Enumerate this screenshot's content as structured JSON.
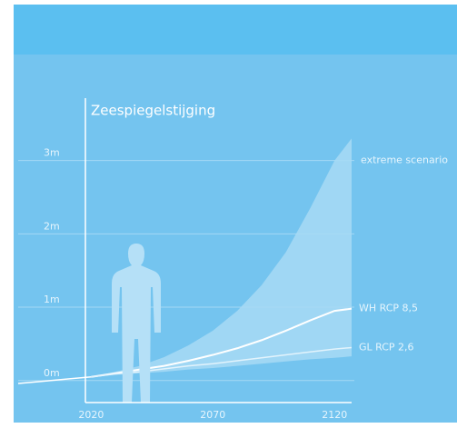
{
  "chart_data": {
    "type": "line",
    "title": "Zeespiegelstijging",
    "x": [
      1990,
      2000,
      2010,
      2020,
      2030,
      2040,
      2050,
      2060,
      2070,
      2080,
      2090,
      2100,
      2110,
      2120,
      2127
    ],
    "xlim": [
      1990,
      2127
    ],
    "xticks": [
      2020,
      2070,
      2120
    ],
    "ylim": [
      -0.3,
      3.85
    ],
    "yticks": [
      {
        "value": 0,
        "label": "0m"
      },
      {
        "value": 1,
        "label": "1m"
      },
      {
        "value": 2,
        "label": "2m"
      },
      {
        "value": 3,
        "label": "3m"
      }
    ],
    "grid": true,
    "band": {
      "name": "extreme scenario",
      "color": "#a8daf5",
      "upper": [
        null,
        null,
        null,
        0.05,
        0.12,
        0.2,
        0.32,
        0.48,
        0.68,
        0.95,
        1.3,
        1.75,
        2.35,
        3.0,
        3.3
      ],
      "lower": [
        null,
        null,
        null,
        0.05,
        0.08,
        0.1,
        0.12,
        0.15,
        0.17,
        0.2,
        0.23,
        0.26,
        0.29,
        0.31,
        0.33
      ]
    },
    "series": [
      {
        "color": "#ffffff",
        "values": [
          -0.04,
          -0.01,
          0.02,
          0.05,
          null,
          null,
          null,
          null,
          null,
          null,
          null,
          null,
          null,
          null,
          null
        ]
      },
      {
        "name": "WH RCP 8,5",
        "color": "#ffffff",
        "values": [
          null,
          null,
          null,
          0.05,
          0.1,
          0.15,
          0.2,
          0.27,
          0.35,
          0.44,
          0.55,
          0.68,
          0.82,
          0.95,
          0.98
        ]
      },
      {
        "name": "GL RCP 2,6",
        "color": "#e2f3fc",
        "values": [
          null,
          null,
          null,
          0.05,
          0.09,
          0.12,
          0.16,
          0.2,
          0.23,
          0.27,
          0.31,
          0.35,
          0.39,
          0.43,
          0.45
        ]
      }
    ]
  }
}
